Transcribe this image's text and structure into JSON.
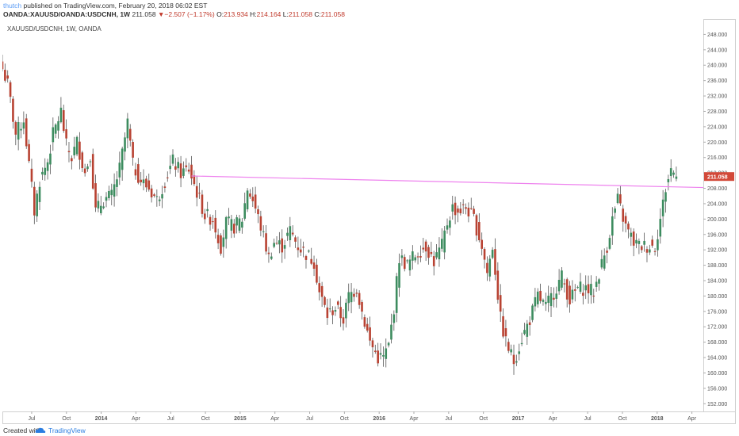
{
  "header": {
    "author": "thutch",
    "published": "published on TradingView.com, February 20, 2018 06:02 EST",
    "symbol": "OANDA:XAUUSD/OANDA:USDCNH, 1W",
    "last": "211.058",
    "change": "−2.507 (−1.17%)",
    "o_label": "O:",
    "o": "213.934",
    "h_label": "H:",
    "h": "214.164",
    "l_label": "L:",
    "l": "211.058",
    "c_label": "C:",
    "c": "211.058"
  },
  "footer": {
    "created": "Created with",
    "brand": "TradingView"
  },
  "colors": {
    "up": "#3d8c5f",
    "down": "#b84232",
    "trendline": "#ee82ee",
    "price_tag": "#d24939"
  },
  "chart_data": {
    "type": "candlestick",
    "title": "XAUUSD/USDCNH, 1W, OANDA",
    "ylim": [
      150,
      252
    ],
    "y_ticks": [
      "152.000",
      "156.000",
      "160.000",
      "164.000",
      "168.000",
      "172.000",
      "176.000",
      "180.000",
      "184.000",
      "188.000",
      "192.000",
      "196.000",
      "200.000",
      "204.000",
      "208.000",
      "212.000",
      "216.000",
      "220.000",
      "224.000",
      "228.000",
      "232.000",
      "236.000",
      "240.000",
      "244.000",
      "248.000"
    ],
    "x_ticks": [
      {
        "label": "Jul",
        "year": false
      },
      {
        "label": "Oct",
        "year": false
      },
      {
        "label": "2014",
        "year": true
      },
      {
        "label": "Apr",
        "year": false
      },
      {
        "label": "Jul",
        "year": false
      },
      {
        "label": "Oct",
        "year": false
      },
      {
        "label": "2015",
        "year": true
      },
      {
        "label": "Apr",
        "year": false
      },
      {
        "label": "Jul",
        "year": false
      },
      {
        "label": "Oct",
        "year": false
      },
      {
        "label": "2016",
        "year": true
      },
      {
        "label": "Apr",
        "year": false
      },
      {
        "label": "Jul",
        "year": false
      },
      {
        "label": "Oct",
        "year": false
      },
      {
        "label": "2017",
        "year": true
      },
      {
        "label": "Apr",
        "year": false
      },
      {
        "label": "Jul",
        "year": false
      },
      {
        "label": "Oct",
        "year": false
      },
      {
        "label": "2018",
        "year": true
      },
      {
        "label": "Apr",
        "year": false
      }
    ],
    "x_range": [
      "2013-04-15",
      "2018-05-01"
    ],
    "last_price": "211.058",
    "trendline": {
      "start_date": "2014-08-25",
      "start_value": 211.2,
      "end_date": "2018-05-01",
      "end_value": 208.2
    },
    "close_path": [
      [
        "2013-04-15",
        239
      ],
      [
        "2013-04-29",
        235
      ],
      [
        "2013-05-20",
        222
      ],
      [
        "2013-06-10",
        226
      ],
      [
        "2013-06-24",
        214
      ],
      [
        "2013-07-08",
        202
      ],
      [
        "2013-07-22",
        210
      ],
      [
        "2013-08-12",
        215
      ],
      [
        "2013-08-26",
        222
      ],
      [
        "2013-09-16",
        228
      ],
      [
        "2013-09-30",
        219
      ],
      [
        "2013-10-14",
        216
      ],
      [
        "2013-10-28",
        220
      ],
      [
        "2013-11-18",
        212
      ],
      [
        "2013-12-02",
        217
      ],
      [
        "2013-12-16",
        202
      ],
      [
        "2014-01-06",
        205
      ],
      [
        "2014-01-27",
        206
      ],
      [
        "2014-02-17",
        213
      ],
      [
        "2014-03-10",
        225
      ],
      [
        "2014-03-24",
        214
      ],
      [
        "2014-04-14",
        210
      ],
      [
        "2014-05-05",
        208
      ],
      [
        "2014-05-26",
        205
      ],
      [
        "2014-06-16",
        210
      ],
      [
        "2014-07-07",
        215
      ],
      [
        "2014-07-28",
        212
      ],
      [
        "2014-08-18",
        213
      ],
      [
        "2014-09-08",
        207
      ],
      [
        "2014-09-29",
        201
      ],
      [
        "2014-10-20",
        200
      ],
      [
        "2014-11-10",
        193
      ],
      [
        "2014-11-24",
        199
      ],
      [
        "2014-12-15",
        198
      ],
      [
        "2015-01-05",
        200
      ],
      [
        "2015-01-19",
        208
      ],
      [
        "2015-02-02",
        205
      ],
      [
        "2015-02-23",
        198
      ],
      [
        "2015-03-16",
        190
      ],
      [
        "2015-03-30",
        194
      ],
      [
        "2015-04-20",
        193
      ],
      [
        "2015-05-11",
        197
      ],
      [
        "2015-06-01",
        193
      ],
      [
        "2015-06-22",
        191
      ],
      [
        "2015-07-13",
        189
      ],
      [
        "2015-07-27",
        181
      ],
      [
        "2015-08-17",
        175
      ],
      [
        "2015-09-07",
        177
      ],
      [
        "2015-09-28",
        174
      ],
      [
        "2015-10-12",
        180
      ],
      [
        "2015-11-02",
        182
      ],
      [
        "2015-11-16",
        176
      ],
      [
        "2015-12-07",
        168
      ],
      [
        "2015-12-28",
        164
      ],
      [
        "2016-01-11",
        164
      ],
      [
        "2016-01-25",
        167
      ],
      [
        "2016-02-08",
        177
      ],
      [
        "2016-02-22",
        190
      ],
      [
        "2016-03-14",
        188
      ],
      [
        "2016-03-28",
        190
      ],
      [
        "2016-04-18",
        192
      ],
      [
        "2016-05-02",
        193
      ],
      [
        "2016-05-23",
        189
      ],
      [
        "2016-06-13",
        193
      ],
      [
        "2016-06-27",
        199
      ],
      [
        "2016-07-11",
        203
      ],
      [
        "2016-07-25",
        202
      ],
      [
        "2016-08-15",
        203
      ],
      [
        "2016-09-05",
        200
      ],
      [
        "2016-09-26",
        193
      ],
      [
        "2016-10-10",
        186
      ],
      [
        "2016-10-24",
        193
      ],
      [
        "2016-11-14",
        174
      ],
      [
        "2016-11-28",
        168
      ],
      [
        "2016-12-19",
        163
      ],
      [
        "2017-01-09",
        169
      ],
      [
        "2017-01-30",
        174
      ],
      [
        "2017-02-20",
        180
      ],
      [
        "2017-03-13",
        177
      ],
      [
        "2017-04-03",
        181
      ],
      [
        "2017-04-24",
        185
      ],
      [
        "2017-05-15",
        179
      ],
      [
        "2017-06-05",
        182
      ],
      [
        "2017-06-26",
        182
      ],
      [
        "2017-07-17",
        181
      ],
      [
        "2017-07-31",
        186
      ],
      [
        "2017-08-21",
        193
      ],
      [
        "2017-09-04",
        200
      ],
      [
        "2017-09-18",
        205
      ],
      [
        "2017-10-09",
        198
      ],
      [
        "2017-10-30",
        194
      ],
      [
        "2017-11-13",
        193
      ],
      [
        "2017-12-04",
        193
      ],
      [
        "2017-12-25",
        193
      ],
      [
        "2018-01-08",
        200
      ],
      [
        "2018-01-22",
        208
      ],
      [
        "2018-02-05",
        213
      ],
      [
        "2018-02-19",
        211.058
      ]
    ]
  }
}
